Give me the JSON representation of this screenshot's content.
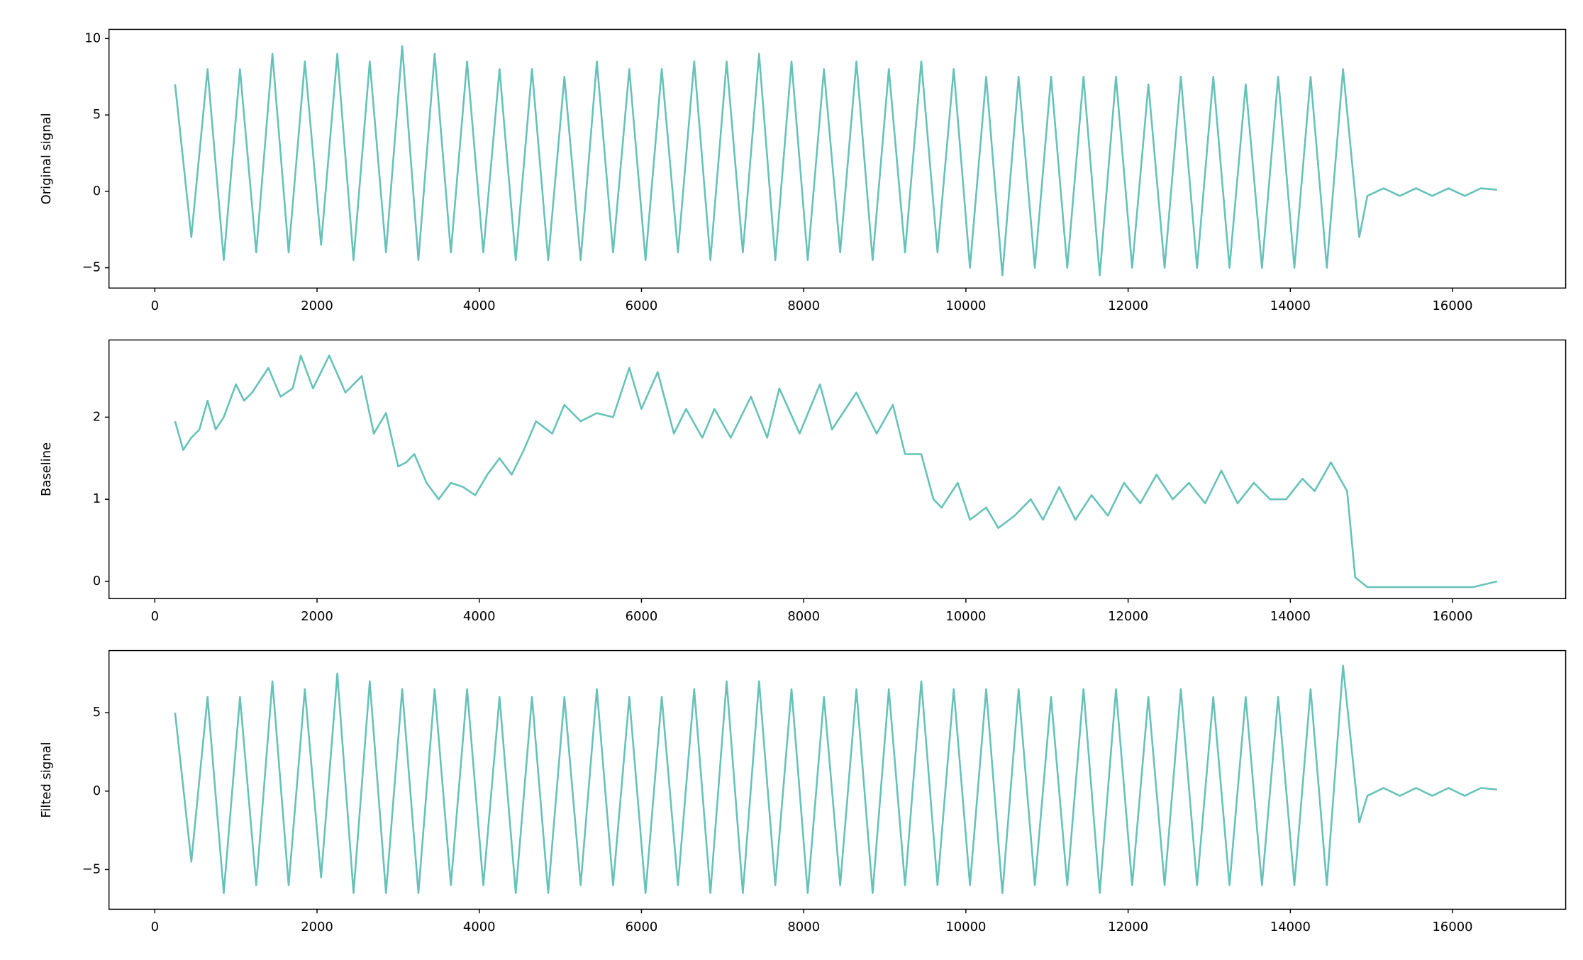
{
  "chart_data": [
    {
      "type": "line",
      "ylabel": "Original signal",
      "color": "#66c2b8",
      "x": [
        250,
        450,
        650,
        850,
        1050,
        1250,
        1450,
        1650,
        1850,
        2050,
        2250,
        2450,
        2650,
        2850,
        3050,
        3250,
        3450,
        3650,
        3850,
        4050,
        4250,
        4450,
        4650,
        4850,
        5050,
        5250,
        5450,
        5650,
        5850,
        6050,
        6250,
        6450,
        6650,
        6850,
        7050,
        7250,
        7450,
        7650,
        7850,
        8050,
        8250,
        8450,
        8650,
        8850,
        9050,
        9250,
        9450,
        9650,
        9850,
        10050,
        10250,
        10450,
        10650,
        10850,
        11050,
        11250,
        11450,
        11650,
        11850,
        12050,
        12250,
        12450,
        12650,
        12850,
        13050,
        13250,
        13450,
        13650,
        13850,
        14050,
        14250,
        14450,
        14650,
        14850,
        14950,
        15150,
        15350,
        15550,
        15750,
        15950,
        16150,
        16350,
        16550
      ],
      "values": [
        7,
        -3,
        8,
        -4.5,
        8,
        -4,
        9,
        -4,
        8.5,
        -3.5,
        9,
        -4.5,
        8.5,
        -4,
        9.5,
        -4.5,
        9,
        -4,
        8.5,
        -4,
        8,
        -4.5,
        8,
        -4.5,
        7.5,
        -4.5,
        8.5,
        -4,
        8,
        -4.5,
        8,
        -4,
        8.5,
        -4.5,
        8.5,
        -4,
        9,
        -4.5,
        8.5,
        -4.5,
        8,
        -4,
        8.5,
        -4.5,
        8,
        -4,
        8.5,
        -4,
        8,
        -5,
        7.5,
        -5.5,
        7.5,
        -5,
        7.5,
        -5,
        7.5,
        -5.5,
        7.5,
        -5,
        7,
        -5,
        7.5,
        -5,
        7.5,
        -5,
        7,
        -5,
        7.5,
        -5,
        7.5,
        -5,
        8,
        -3,
        -0.3,
        0.2,
        -0.3,
        0.2,
        -0.3,
        0.2,
        -0.3,
        0.2,
        0.1
      ],
      "xlim": [
        -565,
        17395
      ],
      "xticks": [
        0,
        2000,
        4000,
        6000,
        8000,
        10000,
        12000,
        14000,
        16000
      ],
      "ylim": [
        -6.33,
        10.6
      ],
      "yticks": [
        {
          "value": -5,
          "label": "−5"
        },
        0,
        5,
        10
      ]
    },
    {
      "type": "line",
      "ylabel": "Baseline",
      "color": "#66c2b8",
      "x": [
        250,
        350,
        450,
        550,
        650,
        750,
        850,
        1000,
        1100,
        1200,
        1400,
        1550,
        1700,
        1800,
        1950,
        2150,
        2350,
        2550,
        2700,
        2850,
        3000,
        3100,
        3200,
        3350,
        3500,
        3650,
        3800,
        3950,
        4100,
        4250,
        4400,
        4550,
        4700,
        4900,
        5050,
        5250,
        5450,
        5650,
        5850,
        6000,
        6200,
        6400,
        6550,
        6750,
        6900,
        7100,
        7350,
        7550,
        7700,
        7950,
        8200,
        8350,
        8650,
        8900,
        9100,
        9250,
        9450,
        9600,
        9700,
        9900,
        10050,
        10250,
        10400,
        10600,
        10800,
        10950,
        11150,
        11350,
        11550,
        11750,
        11950,
        12150,
        12350,
        12550,
        12750,
        12950,
        13150,
        13350,
        13550,
        13750,
        13950,
        14150,
        14300,
        14500,
        14700,
        14800,
        14950,
        16250,
        16550
      ],
      "values": [
        1.95,
        1.6,
        1.75,
        1.85,
        2.2,
        1.85,
        2.0,
        2.4,
        2.2,
        2.3,
        2.6,
        2.25,
        2.35,
        2.75,
        2.35,
        2.75,
        2.3,
        2.5,
        1.8,
        2.05,
        1.4,
        1.45,
        1.55,
        1.2,
        1.0,
        1.2,
        1.15,
        1.05,
        1.3,
        1.5,
        1.3,
        1.6,
        1.95,
        1.8,
        2.15,
        1.95,
        2.05,
        2.0,
        2.6,
        2.1,
        2.55,
        1.8,
        2.1,
        1.75,
        2.1,
        1.75,
        2.25,
        1.75,
        2.35,
        1.8,
        2.4,
        1.85,
        2.3,
        1.8,
        2.15,
        1.55,
        1.55,
        1.0,
        0.9,
        1.2,
        0.75,
        0.9,
        0.65,
        0.8,
        1.0,
        0.75,
        1.15,
        0.75,
        1.05,
        0.8,
        1.2,
        0.95,
        1.3,
        1.0,
        1.2,
        0.95,
        1.35,
        0.95,
        1.2,
        1.0,
        1.0,
        1.25,
        1.1,
        1.45,
        1.1,
        0.05,
        -0.07,
        -0.07,
        0.0
      ],
      "xlim": [
        -565,
        17395
      ],
      "xticks": [
        0,
        2000,
        4000,
        6000,
        8000,
        10000,
        12000,
        14000,
        16000
      ],
      "ylim": [
        -0.21,
        2.94
      ],
      "yticks": [
        0,
        1,
        2
      ]
    },
    {
      "type": "line",
      "ylabel": "Filted signal",
      "color": "#66c2b8",
      "x": [
        250,
        450,
        650,
        850,
        1050,
        1250,
        1450,
        1650,
        1850,
        2050,
        2250,
        2450,
        2650,
        2850,
        3050,
        3250,
        3450,
        3650,
        3850,
        4050,
        4250,
        4450,
        4650,
        4850,
        5050,
        5250,
        5450,
        5650,
        5850,
        6050,
        6250,
        6450,
        6650,
        6850,
        7050,
        7250,
        7450,
        7650,
        7850,
        8050,
        8250,
        8450,
        8650,
        8850,
        9050,
        9250,
        9450,
        9650,
        9850,
        10050,
        10250,
        10450,
        10650,
        10850,
        11050,
        11250,
        11450,
        11650,
        11850,
        12050,
        12250,
        12450,
        12650,
        12850,
        13050,
        13250,
        13450,
        13650,
        13850,
        14050,
        14250,
        14450,
        14650,
        14850,
        14950,
        15150,
        15350,
        15550,
        15750,
        15950,
        16150,
        16350,
        16550
      ],
      "values": [
        5,
        -4.5,
        6,
        -6.5,
        6,
        -6,
        7,
        -6,
        6.5,
        -5.5,
        7.5,
        -6.5,
        7,
        -6.5,
        6.5,
        -6.5,
        6.5,
        -6,
        6.5,
        -6,
        6,
        -6.5,
        6,
        -6.5,
        6,
        -6,
        6.5,
        -6,
        6,
        -6.5,
        6,
        -6,
        6.5,
        -6.5,
        7,
        -6.5,
        7,
        -6,
        6.5,
        -6.5,
        6,
        -6,
        6.5,
        -6.5,
        6.5,
        -6,
        7,
        -6,
        6.5,
        -6,
        6.5,
        -6.5,
        6.5,
        -6,
        6,
        -6,
        6.5,
        -6.5,
        6.5,
        -6,
        6,
        -6,
        6.5,
        -6,
        6,
        -6,
        6,
        -6,
        6,
        -6,
        6.5,
        -6,
        8,
        -2,
        -0.3,
        0.2,
        -0.3,
        0.2,
        -0.3,
        0.2,
        -0.3,
        0.2,
        0.1
      ],
      "xlim": [
        -565,
        17395
      ],
      "xticks": [
        0,
        2000,
        4000,
        6000,
        8000,
        10000,
        12000,
        14000,
        16000
      ],
      "ylim": [
        -7.53,
        8.96
      ],
      "yticks": [
        {
          "value": -5,
          "label": "−5"
        },
        0,
        5
      ]
    }
  ]
}
